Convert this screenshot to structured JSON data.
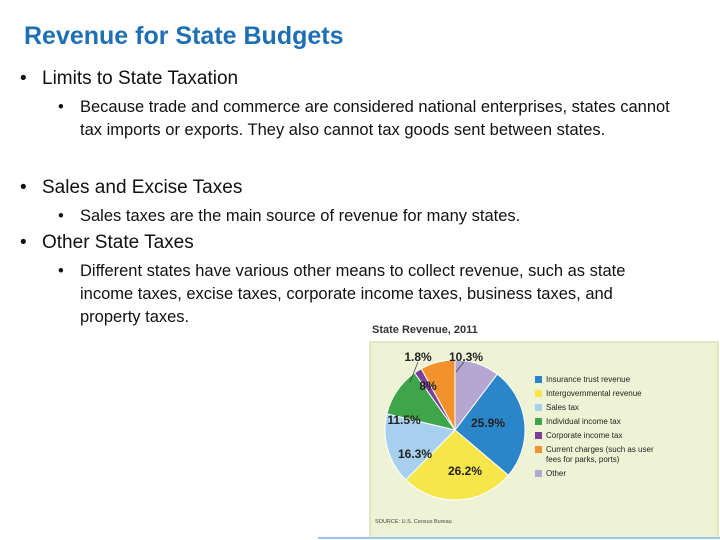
{
  "slide": {
    "title": "Revenue for State Budgets",
    "bullets": [
      {
        "text": "Limits to State Taxation",
        "sub": [
          "Because trade and commerce are considered national enterprises, states cannot tax imports or exports.  They also cannot tax goods sent between states."
        ]
      },
      {
        "text": "Sales and Excise Taxes",
        "sub": [
          "Sales taxes are the main source of revenue for many states."
        ]
      },
      {
        "text": "Other State Taxes",
        "sub": [
          "Different states have various other means to collect revenue, such as state income taxes, excise taxes, corporate income taxes, business taxes, and property taxes."
        ]
      }
    ]
  },
  "chart_data": {
    "type": "pie",
    "title": "State Revenue, 2011",
    "categories": [
      "Insurance trust revenue",
      "Intergovernmental revenue",
      "Sales tax",
      "Individual income tax",
      "Corporate income tax",
      "Current charges (such as user fees for parks, ports)",
      "Other"
    ],
    "values": [
      25.9,
      26.2,
      16.3,
      11.5,
      1.8,
      8,
      10.3
    ],
    "value_labels": [
      "25.9%",
      "26.2%",
      "16.3%",
      "11.5%",
      "1.8%",
      "8%",
      "10.3%"
    ],
    "colors": [
      "#2b86c9",
      "#f7e64a",
      "#a6d0ee",
      "#3fa54a",
      "#7b3f98",
      "#f3922b",
      "#b4a7d1"
    ],
    "source": "SOURCE: U.S. Census Bureau"
  }
}
